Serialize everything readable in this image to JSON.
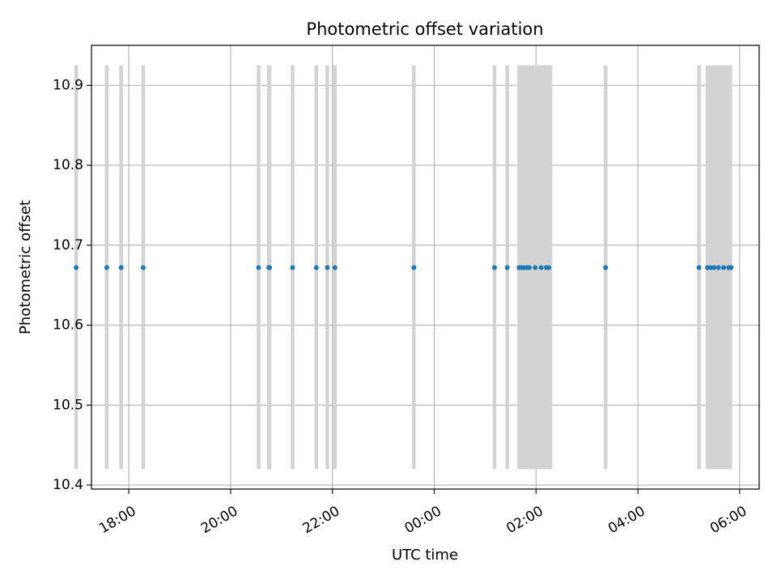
{
  "chart_data": {
    "type": "scatter",
    "title": "Photometric offset variation",
    "xlabel": "UTC time",
    "ylabel": "Photometric offset",
    "x_axis_type": "time",
    "xlim": [
      "17:16",
      "06:23 +1d"
    ],
    "ylim": [
      10.395,
      10.95
    ],
    "x_ticks": [
      "18:00",
      "20:00",
      "22:00",
      "00:00",
      "02:00",
      "04:00",
      "06:00"
    ],
    "y_ticks": [
      "10.4",
      "10.5",
      "10.6",
      "10.7",
      "10.8",
      "10.9"
    ],
    "grid": true,
    "point_color": "#1f77b4",
    "band_color": "#d3d3d3",
    "bands": {
      "y_range": [
        10.42,
        10.925
      ],
      "x": [
        "16:58",
        "17:34",
        "17:51",
        "18:17",
        "20:33",
        "20:45",
        "20:46",
        "21:13",
        "21:41",
        "21:54",
        "22:03",
        "23:36",
        "01:11",
        "01:26",
        "01:40",
        "01:43",
        "01:45",
        "01:47",
        "01:49",
        "01:51",
        "01:55",
        "01:57",
        "01:59",
        "02:01",
        "02:03",
        "02:05",
        "02:07",
        "02:09",
        "02:11",
        "02:13",
        "02:15",
        "02:17",
        "03:22",
        "05:12",
        "05:22",
        "05:25",
        "05:28",
        "05:31",
        "05:34",
        "05:37",
        "05:40",
        "05:43",
        "05:46",
        "05:49"
      ]
    },
    "series": [
      {
        "x": [
          "16:58",
          "17:34",
          "17:51",
          "18:17",
          "20:33",
          "20:45",
          "20:46",
          "21:13",
          "21:41",
          "21:54",
          "22:03",
          "23:36",
          "01:11",
          "01:26",
          "01:40",
          "01:43",
          "01:46",
          "01:49",
          "01:52",
          "01:59",
          "02:06",
          "02:12",
          "02:15",
          "03:22",
          "05:12",
          "05:22",
          "05:26",
          "05:30",
          "05:35",
          "05:41",
          "05:47",
          "05:50"
        ],
        "y": [
          10.672,
          10.672,
          10.672,
          10.672,
          10.672,
          10.672,
          10.672,
          10.672,
          10.672,
          10.672,
          10.672,
          10.672,
          10.672,
          10.672,
          10.672,
          10.672,
          10.672,
          10.672,
          10.672,
          10.672,
          10.672,
          10.672,
          10.672,
          10.672,
          10.672,
          10.672,
          10.672,
          10.672,
          10.672,
          10.672,
          10.672,
          10.672
        ]
      }
    ]
  }
}
